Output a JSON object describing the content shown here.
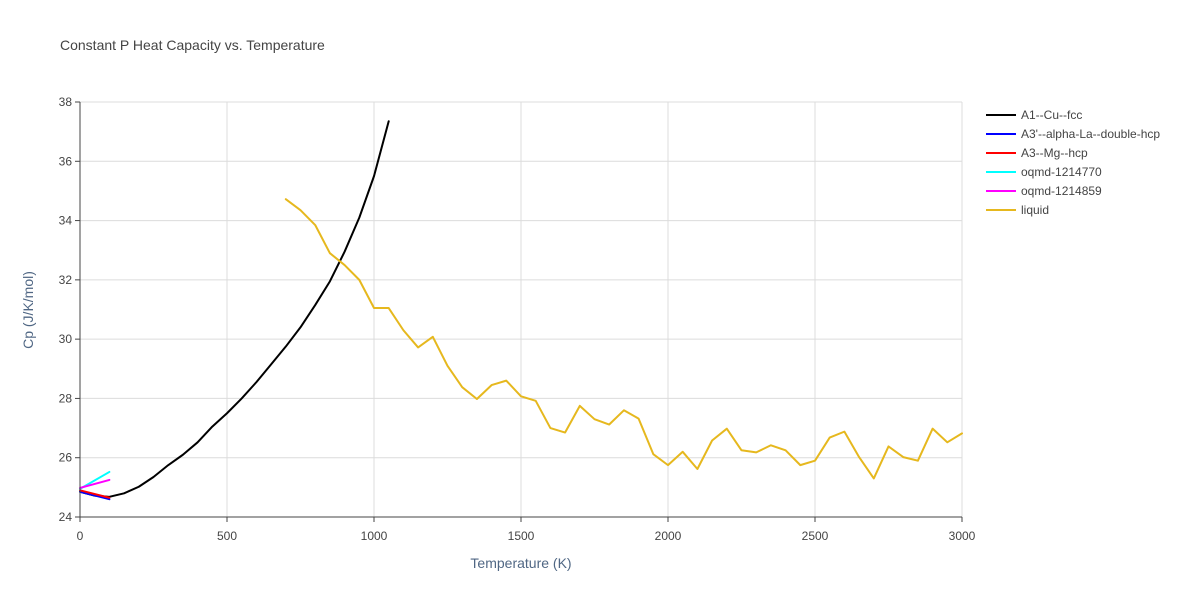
{
  "chart_data": {
    "type": "line",
    "title": "Constant P Heat Capacity vs. Temperature",
    "xlabel": "Temperature (K)",
    "ylabel": "Cp (J/K/mol)",
    "xlim": [
      0,
      3000
    ],
    "ylim": [
      24,
      38
    ],
    "x_ticks": [
      0,
      500,
      1000,
      1500,
      2000,
      2500,
      3000
    ],
    "y_ticks": [
      24,
      26,
      28,
      30,
      32,
      34,
      36,
      38
    ],
    "grid": true,
    "legend_position": "right",
    "series": [
      {
        "name": "A1--Cu--fcc",
        "color": "#000000",
        "x": [
          0,
          50,
          100,
          150,
          200,
          250,
          300,
          350,
          400,
          450,
          500,
          550,
          600,
          650,
          700,
          750,
          800,
          850,
          900,
          950,
          1000,
          1050
        ],
        "y": [
          24.85,
          24.72,
          24.68,
          24.8,
          25.02,
          25.35,
          25.75,
          26.1,
          26.52,
          27.05,
          27.5,
          28.0,
          28.55,
          29.15,
          29.75,
          30.4,
          31.15,
          31.95,
          32.95,
          34.1,
          35.5,
          37.35
        ]
      },
      {
        "name": "A3'--alpha-La--double-hcp",
        "color": "#0000ff",
        "x": [
          0,
          100
        ],
        "y": [
          24.85,
          24.6
        ]
      },
      {
        "name": "A3--Mg--hcp",
        "color": "#ff0000",
        "x": [
          0,
          100
        ],
        "y": [
          24.9,
          24.65
        ]
      },
      {
        "name": "oqmd-1214770",
        "color": "#00ffff",
        "x": [
          0,
          100
        ],
        "y": [
          24.95,
          25.52
        ]
      },
      {
        "name": "oqmd-1214859",
        "color": "#ff00ff",
        "x": [
          0,
          100
        ],
        "y": [
          24.98,
          25.25
        ]
      },
      {
        "name": "liquid",
        "color": "#e6b81e",
        "x": [
          700,
          750,
          800,
          850,
          900,
          950,
          1000,
          1050,
          1100,
          1150,
          1200,
          1250,
          1300,
          1350,
          1400,
          1450,
          1500,
          1550,
          1600,
          1650,
          1700,
          1750,
          1800,
          1850,
          1900,
          1950,
          2000,
          2050,
          2100,
          2150,
          2200,
          2250,
          2300,
          2350,
          2400,
          2450,
          2500,
          2550,
          2600,
          2650,
          2700,
          2750,
          2800,
          2850,
          2900,
          2950,
          3000
        ],
        "y": [
          34.72,
          34.35,
          33.85,
          32.9,
          32.5,
          32.0,
          31.05,
          31.05,
          30.3,
          29.72,
          30.08,
          29.1,
          28.38,
          27.98,
          28.45,
          28.6,
          28.07,
          27.92,
          27.0,
          26.85,
          27.75,
          27.3,
          27.12,
          27.6,
          27.32,
          26.12,
          25.75,
          26.2,
          25.62,
          26.58,
          26.98,
          26.25,
          26.18,
          26.42,
          26.25,
          25.75,
          25.9,
          26.68,
          26.88,
          26.02,
          25.3,
          26.38,
          26.02,
          25.9,
          26.98,
          26.52,
          26.82
        ]
      }
    ]
  }
}
